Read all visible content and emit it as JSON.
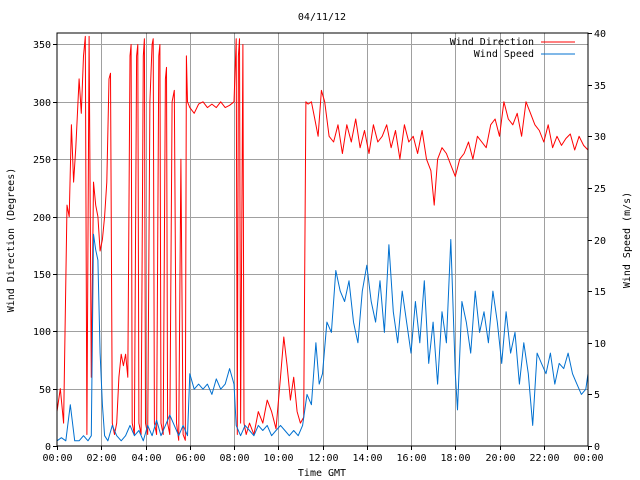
{
  "chart_data": {
    "type": "line",
    "title": "04/11/12",
    "xlabel": "Time GMT",
    "ylabel_left": "Wind Direction (Degrees)",
    "ylabel_right": "Wind Speed (m/s)",
    "x_range_hours": [
      0,
      24
    ],
    "xticks": [
      {
        "h": 0,
        "label": "00:00"
      },
      {
        "h": 2,
        "label": "02:00"
      },
      {
        "h": 4,
        "label": "04:00"
      },
      {
        "h": 6,
        "label": "06:00"
      },
      {
        "h": 8,
        "label": "08:00"
      },
      {
        "h": 10,
        "label": "10:00"
      },
      {
        "h": 12,
        "label": "12:00"
      },
      {
        "h": 14,
        "label": "14:00"
      },
      {
        "h": 16,
        "label": "16:00"
      },
      {
        "h": 18,
        "label": "18:00"
      },
      {
        "h": 20,
        "label": "20:00"
      },
      {
        "h": 22,
        "label": "22:00"
      },
      {
        "h": 24,
        "label": "00:00"
      }
    ],
    "ylim_left": [
      0,
      360
    ],
    "yticks_left": [
      0,
      50,
      100,
      150,
      200,
      250,
      300,
      350
    ],
    "ylim_right": [
      0,
      40
    ],
    "yticks_right": [
      0,
      5,
      10,
      15,
      20,
      25,
      30,
      35,
      40
    ],
    "legend": [
      {
        "label": "Wind Direction",
        "color": "#ff0000"
      },
      {
        "label": "Wind Speed",
        "color": "#0070d0"
      }
    ],
    "series": [
      {
        "name": "Wind Direction",
        "axis": "left",
        "color": "#ff0000",
        "points": [
          [
            0.0,
            30
          ],
          [
            0.15,
            50
          ],
          [
            0.3,
            20
          ],
          [
            0.45,
            210
          ],
          [
            0.55,
            200
          ],
          [
            0.65,
            280
          ],
          [
            0.75,
            230
          ],
          [
            0.85,
            260
          ],
          [
            1.0,
            320
          ],
          [
            1.1,
            290
          ],
          [
            1.2,
            340
          ],
          [
            1.28,
            357
          ],
          [
            1.35,
            10
          ],
          [
            1.45,
            357
          ],
          [
            1.55,
            60
          ],
          [
            1.65,
            230
          ],
          [
            1.75,
            210
          ],
          [
            1.85,
            200
          ],
          [
            1.95,
            170
          ],
          [
            2.05,
            180
          ],
          [
            2.15,
            200
          ],
          [
            2.25,
            230
          ],
          [
            2.35,
            320
          ],
          [
            2.42,
            325
          ],
          [
            2.5,
            20
          ],
          [
            2.6,
            10
          ],
          [
            2.7,
            20
          ],
          [
            2.8,
            60
          ],
          [
            2.9,
            80
          ],
          [
            3.0,
            70
          ],
          [
            3.1,
            80
          ],
          [
            3.2,
            60
          ],
          [
            3.3,
            340
          ],
          [
            3.35,
            350
          ],
          [
            3.4,
            20
          ],
          [
            3.5,
            10
          ],
          [
            3.6,
            340
          ],
          [
            3.65,
            350
          ],
          [
            3.7,
            20
          ],
          [
            3.8,
            10
          ],
          [
            3.9,
            340
          ],
          [
            3.95,
            355
          ],
          [
            4.0,
            20
          ],
          [
            4.1,
            10
          ],
          [
            4.2,
            300
          ],
          [
            4.3,
            350
          ],
          [
            4.35,
            355
          ],
          [
            4.4,
            20
          ],
          [
            4.5,
            10
          ],
          [
            4.6,
            340
          ],
          [
            4.65,
            350
          ],
          [
            4.7,
            20
          ],
          [
            4.8,
            10
          ],
          [
            4.9,
            320
          ],
          [
            4.95,
            330
          ],
          [
            5.0,
            20
          ],
          [
            5.1,
            10
          ],
          [
            5.2,
            300
          ],
          [
            5.3,
            310
          ],
          [
            5.4,
            20
          ],
          [
            5.5,
            5
          ],
          [
            5.6,
            250
          ],
          [
            5.7,
            10
          ],
          [
            5.8,
            5
          ],
          [
            5.85,
            340
          ],
          [
            5.9,
            300
          ],
          [
            6.0,
            295
          ],
          [
            6.2,
            290
          ],
          [
            6.4,
            298
          ],
          [
            6.6,
            300
          ],
          [
            6.8,
            295
          ],
          [
            7.0,
            298
          ],
          [
            7.2,
            295
          ],
          [
            7.4,
            300
          ],
          [
            7.6,
            295
          ],
          [
            7.8,
            297
          ],
          [
            8.0,
            300
          ],
          [
            8.1,
            355
          ],
          [
            8.15,
            10
          ],
          [
            8.2,
            340
          ],
          [
            8.25,
            355
          ],
          [
            8.3,
            20
          ],
          [
            8.4,
            350
          ],
          [
            8.45,
            20
          ],
          [
            8.55,
            10
          ],
          [
            8.7,
            20
          ],
          [
            8.9,
            10
          ],
          [
            9.1,
            30
          ],
          [
            9.3,
            20
          ],
          [
            9.5,
            40
          ],
          [
            9.7,
            30
          ],
          [
            9.9,
            15
          ],
          [
            10.1,
            60
          ],
          [
            10.25,
            95
          ],
          [
            10.4,
            70
          ],
          [
            10.55,
            40
          ],
          [
            10.7,
            60
          ],
          [
            10.85,
            30
          ],
          [
            11.0,
            20
          ],
          [
            11.15,
            25
          ],
          [
            11.25,
            300
          ],
          [
            11.35,
            298
          ],
          [
            11.5,
            300
          ],
          [
            11.65,
            285
          ],
          [
            11.8,
            270
          ],
          [
            11.95,
            310
          ],
          [
            12.1,
            300
          ],
          [
            12.3,
            270
          ],
          [
            12.5,
            265
          ],
          [
            12.7,
            280
          ],
          [
            12.9,
            255
          ],
          [
            13.1,
            280
          ],
          [
            13.3,
            265
          ],
          [
            13.5,
            285
          ],
          [
            13.7,
            260
          ],
          [
            13.9,
            275
          ],
          [
            14.1,
            255
          ],
          [
            14.3,
            280
          ],
          [
            14.5,
            265
          ],
          [
            14.7,
            270
          ],
          [
            14.9,
            280
          ],
          [
            15.1,
            260
          ],
          [
            15.3,
            275
          ],
          [
            15.5,
            250
          ],
          [
            15.7,
            280
          ],
          [
            15.9,
            265
          ],
          [
            16.1,
            270
          ],
          [
            16.3,
            255
          ],
          [
            16.5,
            275
          ],
          [
            16.7,
            250
          ],
          [
            16.9,
            240
          ],
          [
            17.05,
            210
          ],
          [
            17.2,
            250
          ],
          [
            17.4,
            260
          ],
          [
            17.6,
            255
          ],
          [
            17.8,
            245
          ],
          [
            18.0,
            235
          ],
          [
            18.2,
            250
          ],
          [
            18.4,
            255
          ],
          [
            18.6,
            265
          ],
          [
            18.8,
            250
          ],
          [
            19.0,
            270
          ],
          [
            19.2,
            265
          ],
          [
            19.4,
            260
          ],
          [
            19.6,
            280
          ],
          [
            19.8,
            285
          ],
          [
            20.0,
            270
          ],
          [
            20.2,
            300
          ],
          [
            20.4,
            285
          ],
          [
            20.6,
            280
          ],
          [
            20.8,
            290
          ],
          [
            21.0,
            270
          ],
          [
            21.2,
            300
          ],
          [
            21.4,
            290
          ],
          [
            21.6,
            280
          ],
          [
            21.8,
            275
          ],
          [
            22.0,
            265
          ],
          [
            22.2,
            280
          ],
          [
            22.4,
            260
          ],
          [
            22.6,
            270
          ],
          [
            22.8,
            262
          ],
          [
            23.0,
            268
          ],
          [
            23.2,
            272
          ],
          [
            23.4,
            258
          ],
          [
            23.6,
            270
          ],
          [
            23.8,
            262
          ],
          [
            24.0,
            258
          ]
        ]
      },
      {
        "name": "Wind Speed",
        "axis": "right",
        "color": "#0070d0",
        "points": [
          [
            0.0,
            0.5
          ],
          [
            0.2,
            0.8
          ],
          [
            0.4,
            0.5
          ],
          [
            0.6,
            4
          ],
          [
            0.8,
            0.5
          ],
          [
            1.0,
            0.5
          ],
          [
            1.2,
            1
          ],
          [
            1.4,
            0.5
          ],
          [
            1.55,
            1
          ],
          [
            1.65,
            20.5
          ],
          [
            1.75,
            19
          ],
          [
            1.85,
            18
          ],
          [
            1.95,
            9
          ],
          [
            2.05,
            4
          ],
          [
            2.15,
            1
          ],
          [
            2.3,
            0.5
          ],
          [
            2.5,
            2
          ],
          [
            2.7,
            1
          ],
          [
            2.9,
            0.5
          ],
          [
            3.1,
            1
          ],
          [
            3.3,
            2
          ],
          [
            3.5,
            1
          ],
          [
            3.7,
            1.5
          ],
          [
            3.9,
            0.5
          ],
          [
            4.1,
            2
          ],
          [
            4.3,
            1
          ],
          [
            4.5,
            2.5
          ],
          [
            4.7,
            1
          ],
          [
            4.9,
            2
          ],
          [
            5.1,
            3
          ],
          [
            5.3,
            2
          ],
          [
            5.5,
            1
          ],
          [
            5.7,
            2
          ],
          [
            5.9,
            1
          ],
          [
            6.0,
            7
          ],
          [
            6.2,
            5.5
          ],
          [
            6.4,
            6
          ],
          [
            6.6,
            5.5
          ],
          [
            6.8,
            6
          ],
          [
            7.0,
            5
          ],
          [
            7.2,
            6.5
          ],
          [
            7.4,
            5.5
          ],
          [
            7.6,
            6
          ],
          [
            7.8,
            7.5
          ],
          [
            8.0,
            6
          ],
          [
            8.1,
            2
          ],
          [
            8.3,
            1
          ],
          [
            8.5,
            2
          ],
          [
            8.7,
            1.5
          ],
          [
            8.9,
            1
          ],
          [
            9.1,
            2
          ],
          [
            9.3,
            1.5
          ],
          [
            9.5,
            2
          ],
          [
            9.7,
            1
          ],
          [
            9.9,
            1.5
          ],
          [
            10.1,
            2
          ],
          [
            10.3,
            1.5
          ],
          [
            10.5,
            1
          ],
          [
            10.7,
            1.5
          ],
          [
            10.9,
            1
          ],
          [
            11.1,
            2
          ],
          [
            11.3,
            5
          ],
          [
            11.5,
            4
          ],
          [
            11.7,
            10
          ],
          [
            11.85,
            6
          ],
          [
            12.0,
            7
          ],
          [
            12.2,
            12
          ],
          [
            12.4,
            11
          ],
          [
            12.6,
            17
          ],
          [
            12.8,
            15
          ],
          [
            13.0,
            14
          ],
          [
            13.2,
            16
          ],
          [
            13.4,
            12
          ],
          [
            13.6,
            10
          ],
          [
            13.8,
            15
          ],
          [
            14.0,
            17.5
          ],
          [
            14.2,
            14
          ],
          [
            14.4,
            12
          ],
          [
            14.6,
            16
          ],
          [
            14.8,
            11
          ],
          [
            15.0,
            19.5
          ],
          [
            15.2,
            13
          ],
          [
            15.4,
            10
          ],
          [
            15.6,
            15
          ],
          [
            15.8,
            12
          ],
          [
            16.0,
            9
          ],
          [
            16.2,
            14
          ],
          [
            16.4,
            10
          ],
          [
            16.6,
            16
          ],
          [
            16.8,
            8
          ],
          [
            17.0,
            12
          ],
          [
            17.2,
            6
          ],
          [
            17.4,
            13
          ],
          [
            17.6,
            10
          ],
          [
            17.8,
            20
          ],
          [
            18.0,
            7
          ],
          [
            18.1,
            3.5
          ],
          [
            18.3,
            14
          ],
          [
            18.5,
            12
          ],
          [
            18.7,
            9
          ],
          [
            18.9,
            15
          ],
          [
            19.1,
            11
          ],
          [
            19.3,
            13
          ],
          [
            19.5,
            10
          ],
          [
            19.7,
            15
          ],
          [
            19.9,
            12
          ],
          [
            20.1,
            8
          ],
          [
            20.3,
            13
          ],
          [
            20.5,
            9
          ],
          [
            20.7,
            11
          ],
          [
            20.9,
            6
          ],
          [
            21.1,
            10
          ],
          [
            21.3,
            7
          ],
          [
            21.5,
            2
          ],
          [
            21.7,
            9
          ],
          [
            21.9,
            8
          ],
          [
            22.1,
            7
          ],
          [
            22.3,
            9
          ],
          [
            22.5,
            6
          ],
          [
            22.7,
            8
          ],
          [
            22.9,
            7.5
          ],
          [
            23.1,
            9
          ],
          [
            23.3,
            7
          ],
          [
            23.5,
            6
          ],
          [
            23.7,
            5
          ],
          [
            23.9,
            5.5
          ],
          [
            24.0,
            7
          ]
        ]
      }
    ]
  },
  "colors": {
    "grid": "#a0a0a0",
    "axis": "#000000",
    "background": "#ffffff"
  }
}
